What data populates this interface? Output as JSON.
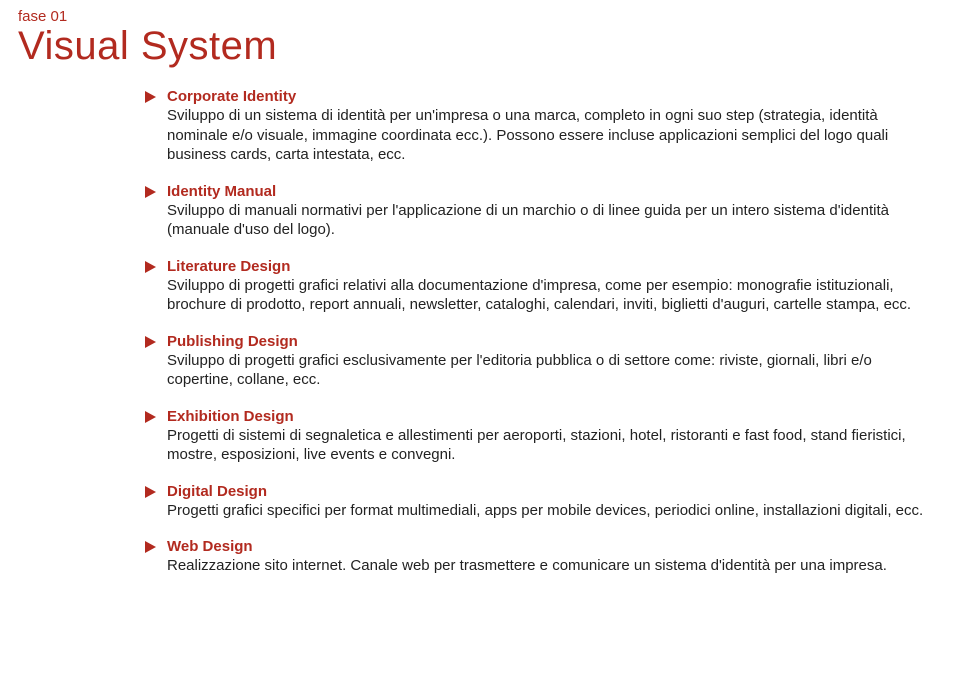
{
  "colors": {
    "accent": "#b22a1f",
    "text": "#222222",
    "background": "#ffffff"
  },
  "typography": {
    "phase_fontsize": 15,
    "title_fontsize": 40,
    "section_title_fontsize": 15,
    "body_fontsize": 15,
    "title_weight": 400,
    "section_title_weight": 700,
    "body_weight": 300
  },
  "phase": "fase 01",
  "title": "Visual System",
  "sections": [
    {
      "title": "Corporate Identity",
      "body": "Sviluppo di un sistema di identità per un'impresa o una marca, completo in ogni suo step (strategia, identità nominale e/o visuale, immagine coordinata ecc.). Possono essere incluse applicazioni semplici del logo quali business cards, carta intestata, ecc."
    },
    {
      "title": "Identity Manual",
      "body": "Sviluppo di manuali normativi per l'applicazione di un marchio o di linee guida per un intero sistema d'identità (manuale d'uso del logo)."
    },
    {
      "title": "Literature Design",
      "body": "Sviluppo di progetti grafici relativi alla documentazione d'impresa, come per esempio: monografie istituzionali, brochure di prodotto, report annuali, newsletter, cataloghi, calendari, inviti, biglietti d'auguri, cartelle stampa, ecc."
    },
    {
      "title": "Publishing Design",
      "body": "Sviluppo di progetti grafici esclusivamente per l'editoria pubblica o di settore come: riviste, giornali, libri e/o copertine, collane, ecc."
    },
    {
      "title": "Exhibition Design",
      "body": "Progetti di sistemi di segnaletica e allestimenti per aeroporti, stazioni, hotel, ristoranti e fast food, stand fieristici, mostre, esposizioni, live events e convegni."
    },
    {
      "title": "Digital Design",
      "body": "Progetti grafici specifici per format multimediali, apps per mobile devices, periodici online, installazioni digitali, ecc."
    },
    {
      "title": "Web Design",
      "body": "Realizzazione sito internet. Canale web per trasmettere e comunicare un sistema d'identità per una impresa."
    }
  ]
}
